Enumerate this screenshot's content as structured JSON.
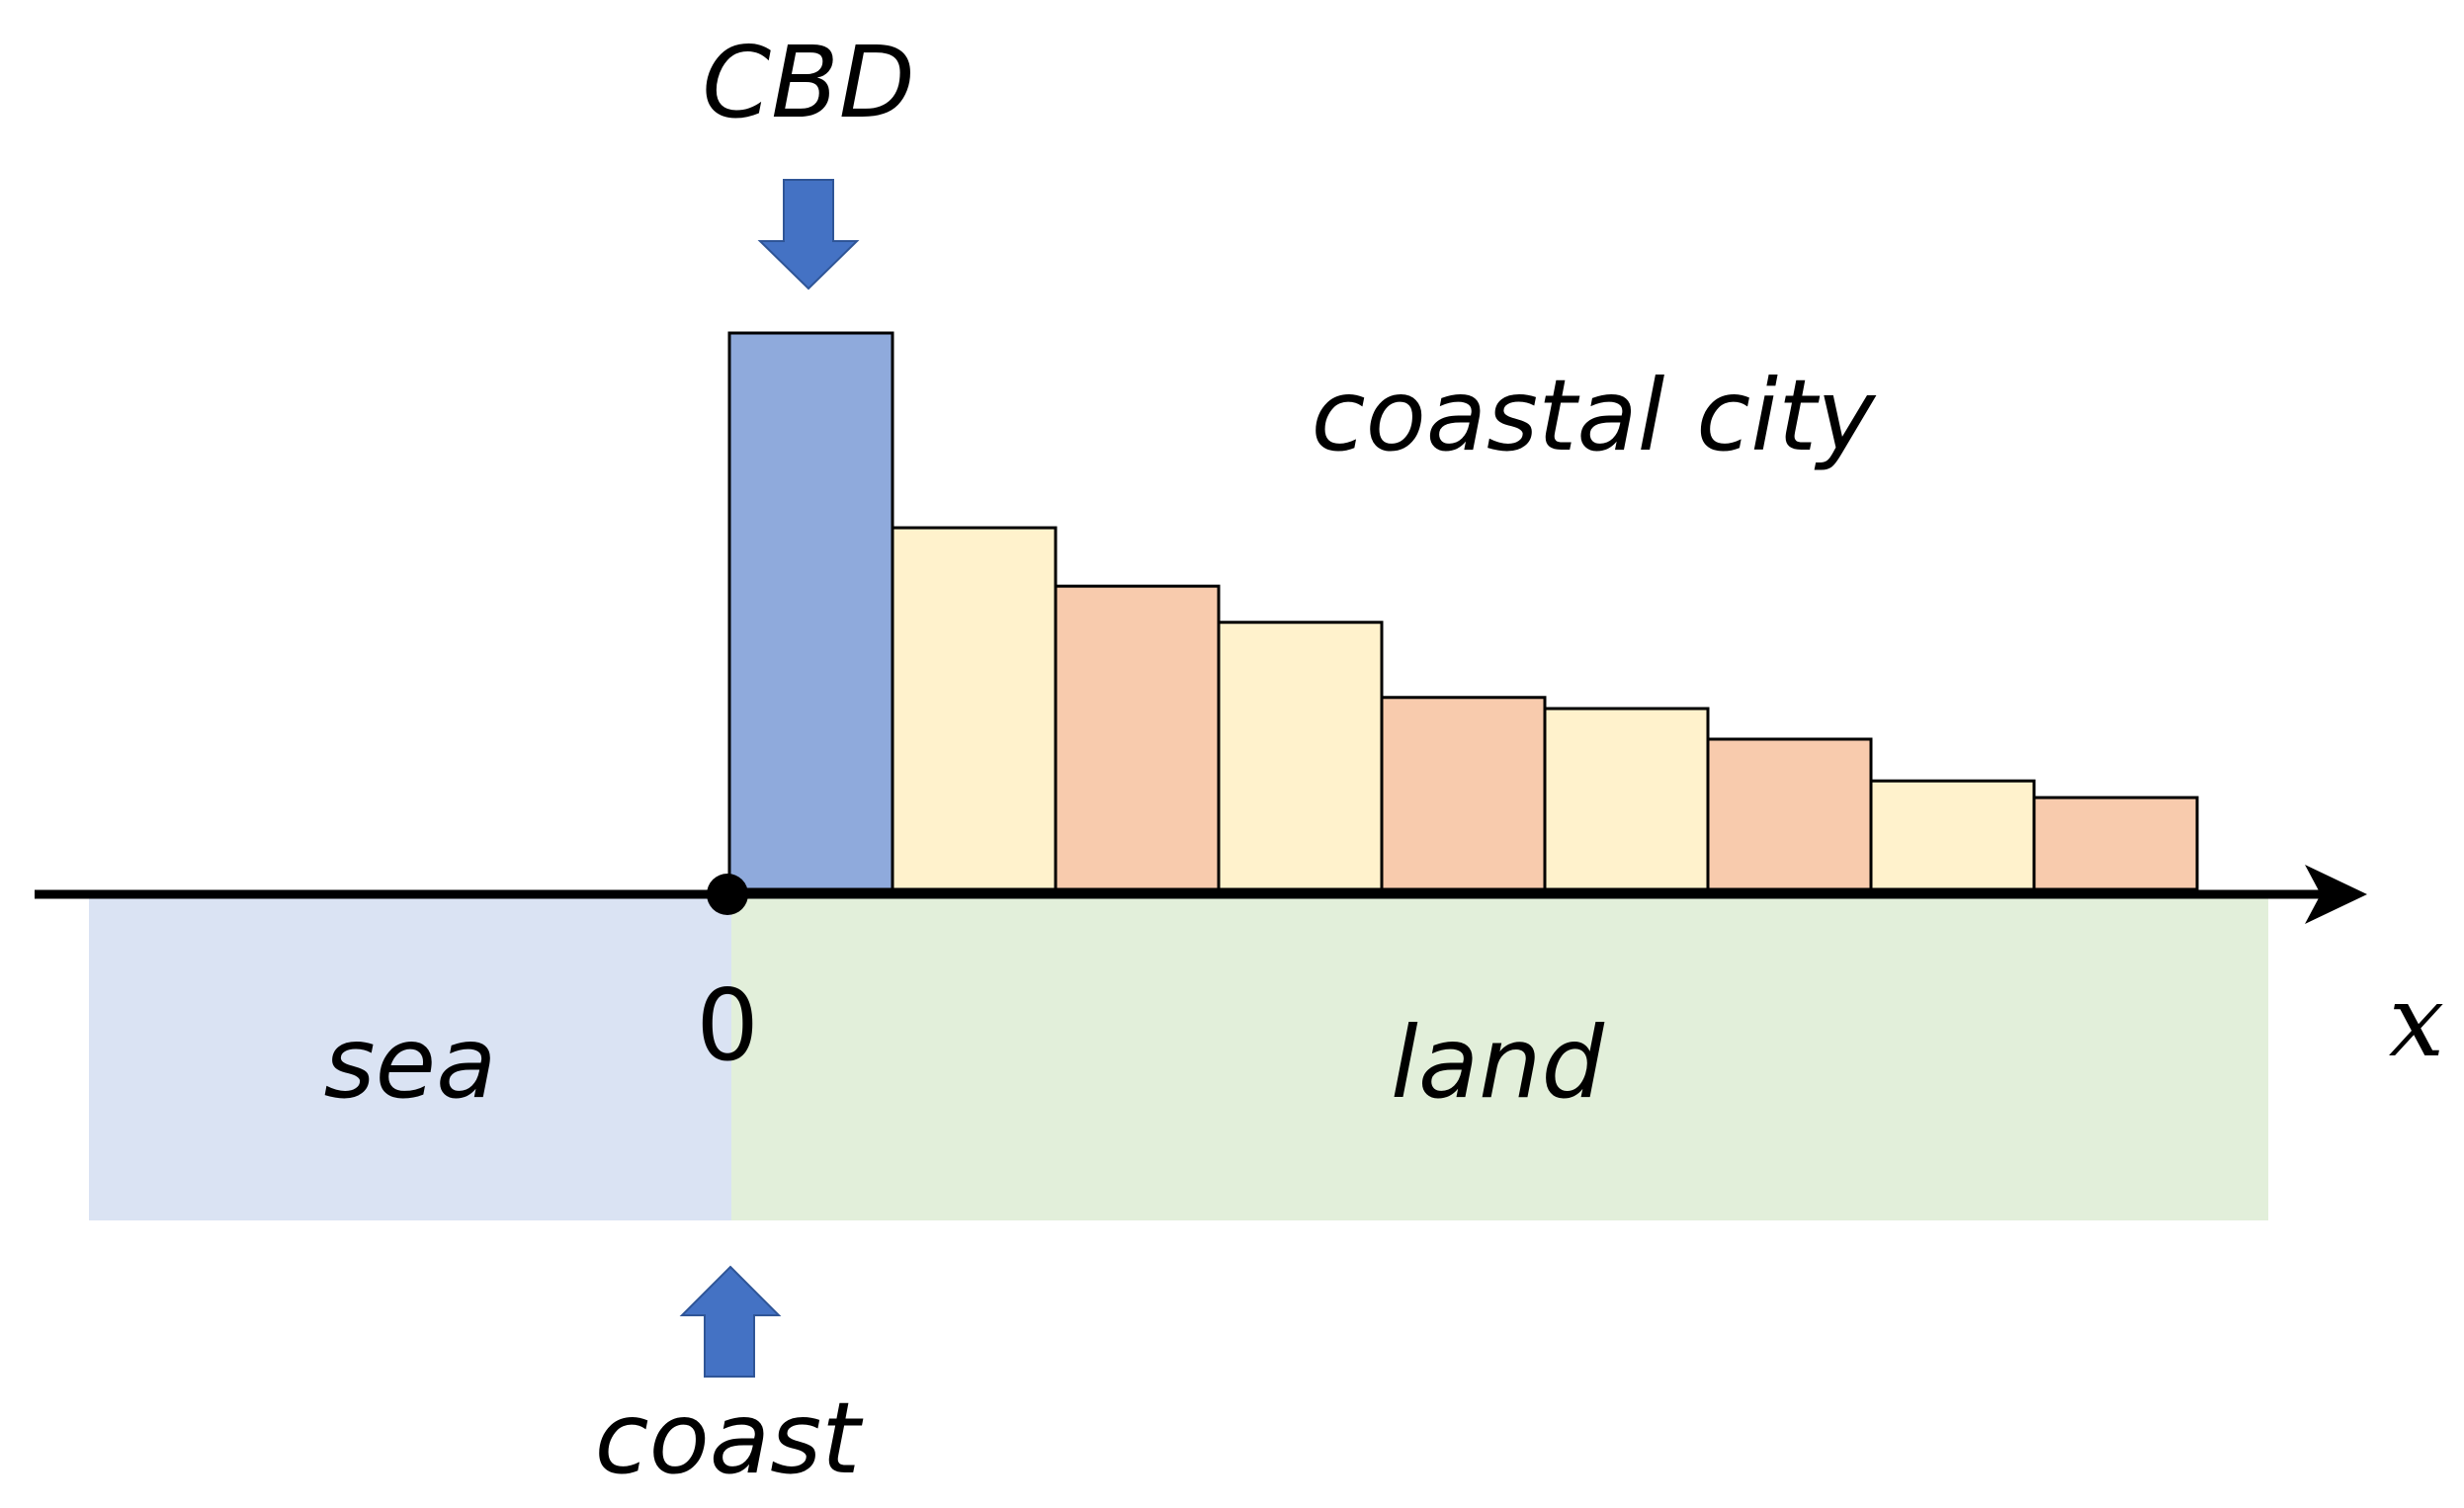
{
  "labels": {
    "cbd": "CBD",
    "coastal_city": "coastal city",
    "sea": "sea",
    "land": "land",
    "origin": "0",
    "x_axis": "x",
    "coast": "coast"
  },
  "colors": {
    "sea": "#dae3f3",
    "land": "#e2efda",
    "cbd_block": "#8faadc",
    "zone_light": "#fff2cc",
    "zone_peach": "#f8cbad",
    "arrow": "#4472c4",
    "axis": "#000000",
    "outline": "#000000"
  },
  "city_profile": {
    "cbd_level": 1.0,
    "zones": [
      {
        "level": 0.65,
        "color": "zone_light"
      },
      {
        "level": 0.545,
        "color": "zone_peach"
      },
      {
        "level": 0.48,
        "color": "zone_light"
      },
      {
        "level": 0.345,
        "color": "zone_peach"
      },
      {
        "level": 0.325,
        "color": "zone_light"
      },
      {
        "level": 0.27,
        "color": "zone_peach"
      },
      {
        "level": 0.195,
        "color": "zone_light"
      },
      {
        "level": 0.165,
        "color": "zone_peach"
      }
    ]
  }
}
